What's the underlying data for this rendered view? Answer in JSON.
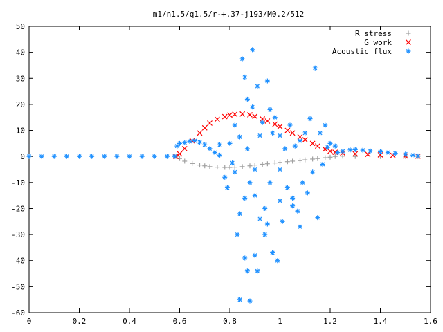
{
  "chart_data": {
    "type": "scatter",
    "title": "m1/n1.5/q1.5/r-+.37-j193/M0.2/512",
    "xlabel": "",
    "ylabel": "",
    "xlim": [
      0,
      1.6
    ],
    "ylim": [
      -60,
      50
    ],
    "x_ticks": [
      "0",
      "0.2",
      "0.4",
      "0.6",
      "0.8",
      "1",
      "1.2",
      "1.4",
      "1.6"
    ],
    "y_ticks": [
      "50",
      "40",
      "30",
      "20",
      "10",
      "0",
      "-10",
      "-20",
      "-30",
      "-40",
      "-50",
      "-60"
    ],
    "grid": false,
    "legend": {
      "placement": "top-right"
    },
    "series": [
      {
        "name": "R stress",
        "color": "#a0a0a0",
        "marker": "plus",
        "points": [
          [
            0.585,
            0.0
          ],
          [
            0.6,
            -0.8
          ],
          [
            0.62,
            -1.8
          ],
          [
            0.65,
            -2.7
          ],
          [
            0.68,
            -3.3
          ],
          [
            0.7,
            -3.6
          ],
          [
            0.72,
            -3.9
          ],
          [
            0.75,
            -4.1
          ],
          [
            0.78,
            -4.2
          ],
          [
            0.8,
            -4.2
          ],
          [
            0.82,
            -4.1
          ],
          [
            0.85,
            -3.9
          ],
          [
            0.88,
            -3.6
          ],
          [
            0.9,
            -3.3
          ],
          [
            0.93,
            -3.0
          ],
          [
            0.95,
            -2.8
          ],
          [
            0.98,
            -2.5
          ],
          [
            1.0,
            -2.3
          ],
          [
            1.03,
            -2.0
          ],
          [
            1.05,
            -1.8
          ],
          [
            1.08,
            -1.6
          ],
          [
            1.1,
            -1.3
          ],
          [
            1.13,
            -1.0
          ],
          [
            1.15,
            -0.8
          ],
          [
            1.18,
            -0.5
          ],
          [
            1.2,
            -0.3
          ],
          [
            1.22,
            0.0
          ],
          [
            1.25,
            0.1
          ],
          [
            1.3,
            0.0
          ],
          [
            1.4,
            0.0
          ],
          [
            1.5,
            0.0
          ],
          [
            1.55,
            0.0
          ]
        ]
      },
      {
        "name": "G work",
        "color": "#ff0000",
        "marker": "cross",
        "points": [
          [
            0.585,
            0.0
          ],
          [
            0.6,
            1.0
          ],
          [
            0.62,
            3.0
          ],
          [
            0.65,
            6.0
          ],
          [
            0.68,
            9.0
          ],
          [
            0.7,
            11.0
          ],
          [
            0.72,
            12.8
          ],
          [
            0.75,
            14.3
          ],
          [
            0.78,
            15.3
          ],
          [
            0.8,
            15.9
          ],
          [
            0.82,
            16.2
          ],
          [
            0.85,
            16.3
          ],
          [
            0.88,
            16.0
          ],
          [
            0.9,
            15.4
          ],
          [
            0.93,
            14.4
          ],
          [
            0.95,
            13.6
          ],
          [
            0.98,
            12.4
          ],
          [
            1.0,
            11.5
          ],
          [
            1.03,
            10.0
          ],
          [
            1.05,
            9.0
          ],
          [
            1.08,
            7.5
          ],
          [
            1.1,
            6.4
          ],
          [
            1.13,
            5.0
          ],
          [
            1.15,
            4.0
          ],
          [
            1.18,
            2.8
          ],
          [
            1.2,
            2.0
          ],
          [
            1.22,
            1.6
          ],
          [
            1.25,
            1.3
          ],
          [
            1.3,
            1.0
          ],
          [
            1.35,
            0.8
          ],
          [
            1.4,
            0.6
          ],
          [
            1.45,
            0.4
          ],
          [
            1.5,
            0.2
          ],
          [
            1.55,
            0.1
          ]
        ]
      },
      {
        "name": "Acoustic flux",
        "color": "#1e90ff",
        "marker": "star",
        "points": [
          [
            0.0,
            0.0
          ],
          [
            0.05,
            0.0
          ],
          [
            0.1,
            0.0
          ],
          [
            0.15,
            0.0
          ],
          [
            0.2,
            0.0
          ],
          [
            0.25,
            0.0
          ],
          [
            0.3,
            0.0
          ],
          [
            0.35,
            0.0
          ],
          [
            0.4,
            0.0
          ],
          [
            0.45,
            0.0
          ],
          [
            0.5,
            0.0
          ],
          [
            0.55,
            0.0
          ],
          [
            0.58,
            0.0
          ],
          [
            0.59,
            4.0
          ],
          [
            0.6,
            5.0
          ],
          [
            0.62,
            5.3
          ],
          [
            0.64,
            5.8
          ],
          [
            0.66,
            6.0
          ],
          [
            0.68,
            5.5
          ],
          [
            0.7,
            4.5
          ],
          [
            0.72,
            3.0
          ],
          [
            0.74,
            1.5
          ],
          [
            0.76,
            0.5
          ],
          [
            0.76,
            4.5
          ],
          [
            0.78,
            -8.0
          ],
          [
            0.79,
            -12.0
          ],
          [
            0.8,
            5.0
          ],
          [
            0.81,
            -2.5
          ],
          [
            0.82,
            -6.0
          ],
          [
            0.83,
            -30.0
          ],
          [
            0.84,
            7.5
          ],
          [
            0.85,
            37.5
          ],
          [
            0.86,
            -16.0
          ],
          [
            0.86,
            30.5
          ],
          [
            0.87,
            22.0
          ],
          [
            0.87,
            -44.0
          ],
          [
            0.88,
            -10.0
          ],
          [
            0.89,
            41.0
          ],
          [
            0.89,
            19.0
          ],
          [
            0.9,
            -5.0
          ],
          [
            0.9,
            -38.0
          ],
          [
            0.91,
            27.0
          ],
          [
            0.91,
            -44.0
          ],
          [
            0.92,
            -24.0
          ],
          [
            0.93,
            13.0
          ],
          [
            0.94,
            -20.0
          ],
          [
            0.94,
            -30.0
          ],
          [
            0.95,
            29.0
          ],
          [
            0.96,
            18.0
          ],
          [
            0.96,
            -10.0
          ],
          [
            0.97,
            9.0
          ],
          [
            0.97,
            -37.0
          ],
          [
            0.98,
            15.0
          ],
          [
            0.99,
            -40.0
          ],
          [
            1.0,
            -5.0
          ],
          [
            1.0,
            8.0
          ],
          [
            1.01,
            -25.0
          ],
          [
            1.02,
            3.0
          ],
          [
            1.03,
            -12.0
          ],
          [
            1.04,
            12.0
          ],
          [
            1.05,
            -16.0
          ],
          [
            1.06,
            4.0
          ],
          [
            1.07,
            -21.0
          ],
          [
            1.08,
            6.0
          ],
          [
            1.09,
            -10.0
          ],
          [
            1.1,
            9.0
          ],
          [
            1.11,
            -14.0
          ],
          [
            1.12,
            14.5
          ],
          [
            1.13,
            -6.0
          ],
          [
            1.14,
            34.0
          ],
          [
            1.15,
            -23.5
          ],
          [
            1.16,
            9.0
          ],
          [
            1.17,
            -3.0
          ],
          [
            1.18,
            12.0
          ],
          [
            1.19,
            3.5
          ],
          [
            1.2,
            5.0
          ],
          [
            1.22,
            4.0
          ],
          [
            1.23,
            1.5
          ],
          [
            1.25,
            2.0
          ],
          [
            1.28,
            2.5
          ],
          [
            1.3,
            2.6
          ],
          [
            1.33,
            2.4
          ],
          [
            1.36,
            2.1
          ],
          [
            1.4,
            1.8
          ],
          [
            1.43,
            1.5
          ],
          [
            1.46,
            1.2
          ],
          [
            1.5,
            0.9
          ],
          [
            1.53,
            0.5
          ],
          [
            1.55,
            0.2
          ],
          [
            0.84,
            -55.0
          ],
          [
            0.88,
            -55.5
          ],
          [
            0.86,
            -39.0
          ],
          [
            0.82,
            12.0
          ],
          [
            0.92,
            8.0
          ],
          [
            0.84,
            -22.0
          ],
          [
            0.9,
            -15.0
          ],
          [
            0.95,
            -26.0
          ],
          [
            1.0,
            -17.0
          ],
          [
            1.05,
            -19.0
          ],
          [
            1.08,
            -27.0
          ],
          [
            0.87,
            3.0
          ]
        ]
      }
    ]
  }
}
